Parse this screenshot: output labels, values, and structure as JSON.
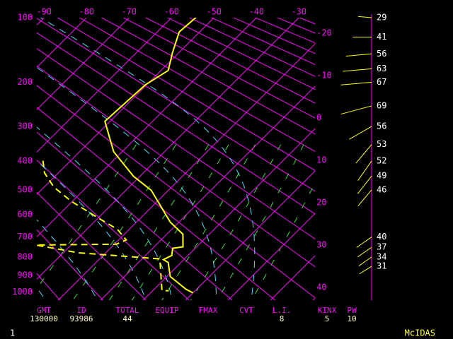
{
  "chart_data": {
    "type": "skewt",
    "ylim": [
      100,
      1050
    ],
    "yticks": [
      100,
      200,
      300,
      400,
      500,
      600,
      700,
      800,
      900,
      1000
    ],
    "xlim": [
      -91.7,
      -26.2
    ],
    "xticks": [
      -90,
      -80,
      -70,
      -60,
      -50,
      -40,
      -30,
      -20,
      -10,
      0,
      10,
      20,
      30,
      40
    ],
    "grid_color": "#ff00ff",
    "series": [
      {
        "color": "#ffff00",
        "dashed": false,
        "pressure": [
          97,
          118,
          148,
          178,
          205,
          287,
          371,
          451,
          502,
          632,
          687,
          748,
          755,
          792,
          814,
          829,
          907,
          982,
          1004
        ],
        "values": [
          -54.2,
          -54.8,
          -51.5,
          -48.3,
          -50.3,
          -51.2,
          -42,
          -31.5,
          -24,
          -12,
          -6.2,
          -3.2,
          -5.3,
          -3.8,
          -4.8,
          -3,
          0.8,
          7.5,
          10
        ]
      },
      {
        "color": "#ffff00",
        "dashed": true,
        "pressure": [
          399,
          439,
          489,
          544,
          617,
          664,
          714,
          735,
          739,
          778,
          810,
          991,
          991
        ],
        "values": [
          -56.5,
          -53.3,
          -47.8,
          -40.3,
          -29.5,
          -22.8,
          -18.2,
          -19.5,
          -38.3,
          -26.5,
          -5.8,
          2.2,
          3.8
        ]
      }
    ],
    "winds": {
      "color": "#ffff00",
      "pressure": [
        100,
        125,
        150,
        175,
        200,
        250,
        300,
        350,
        400,
        450,
        500,
        700,
        750,
        800,
        850
      ],
      "values": [
        29,
        41,
        56,
        63,
        67,
        69,
        56,
        53,
        52,
        49,
        46,
        40,
        37,
        34,
        31
      ],
      "direction": [
        275,
        270,
        265,
        265,
        265,
        255,
        240,
        220,
        215,
        218,
        220,
        235,
        235,
        235,
        238
      ]
    },
    "indices": [
      {
        "label": "GMT",
        "value": "130000"
      },
      {
        "label": "ID",
        "value": 93986
      },
      {
        "label": "TOTAL",
        "value": 44
      },
      {
        "label": "EQUIP",
        "value": null
      },
      {
        "label": "FMAX",
        "value": null
      },
      {
        "label": "CVT",
        "value": null
      },
      {
        "label": "L.I.",
        "value": 8
      },
      {
        "label": "KINX",
        "value": 5
      },
      {
        "label": "PW",
        "value": 10
      }
    ]
  },
  "footer": {
    "frame": "1",
    "system": "McIDAS"
  }
}
